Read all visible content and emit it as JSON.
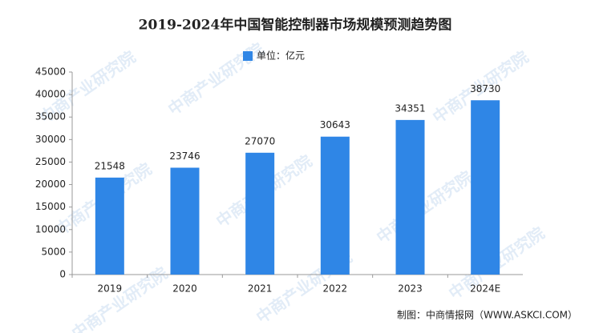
{
  "chart_data": {
    "type": "bar",
    "title": "2019-2024年中国智能控制器市场规模预测趋势图",
    "categories": [
      "2019",
      "2020",
      "2021",
      "2022",
      "2023",
      "2024E"
    ],
    "series": [
      {
        "name": "单位：亿元",
        "color": "#2f86e6",
        "values": [
          21548,
          23746,
          27070,
          30643,
          34351,
          38730
        ]
      }
    ],
    "ylim": [
      0,
      45000
    ],
    "yticks": [
      0,
      5000,
      10000,
      15000,
      20000,
      25000,
      30000,
      35000,
      40000,
      45000
    ],
    "grid": false,
    "legend": "top",
    "source": "制图：中商情报网（WWW.ASKCI.COM）",
    "watermark": "中商产业研究院"
  }
}
